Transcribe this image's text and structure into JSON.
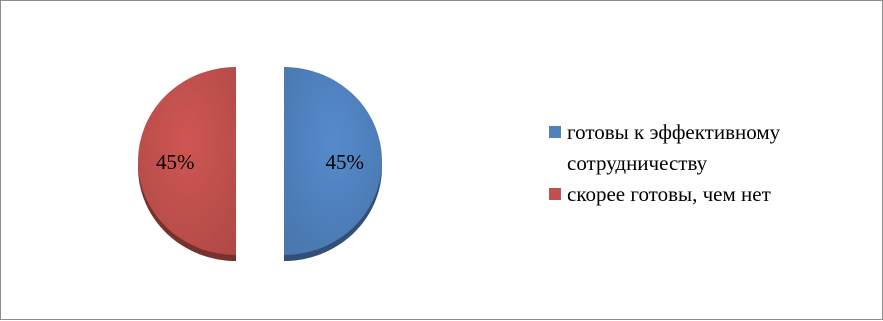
{
  "chart_data": {
    "type": "pie",
    "title": "",
    "exploded": true,
    "style": "3d",
    "slices": [
      {
        "label": "готовы к эффективному сотрудничеству",
        "value": 45,
        "value_label": "45%",
        "color": "#4F81BD"
      },
      {
        "label": "скорее готовы, чем нет",
        "value": 45,
        "value_label": "45%",
        "color": "#C0504D"
      }
    ],
    "legend": {
      "placement": "right",
      "items": [
        {
          "label": "готовы к эффективному сотрудничеству",
          "color": "#4F81BD"
        },
        {
          "label": "скорее готовы, чем нет",
          "color": "#C0504D"
        }
      ]
    }
  }
}
